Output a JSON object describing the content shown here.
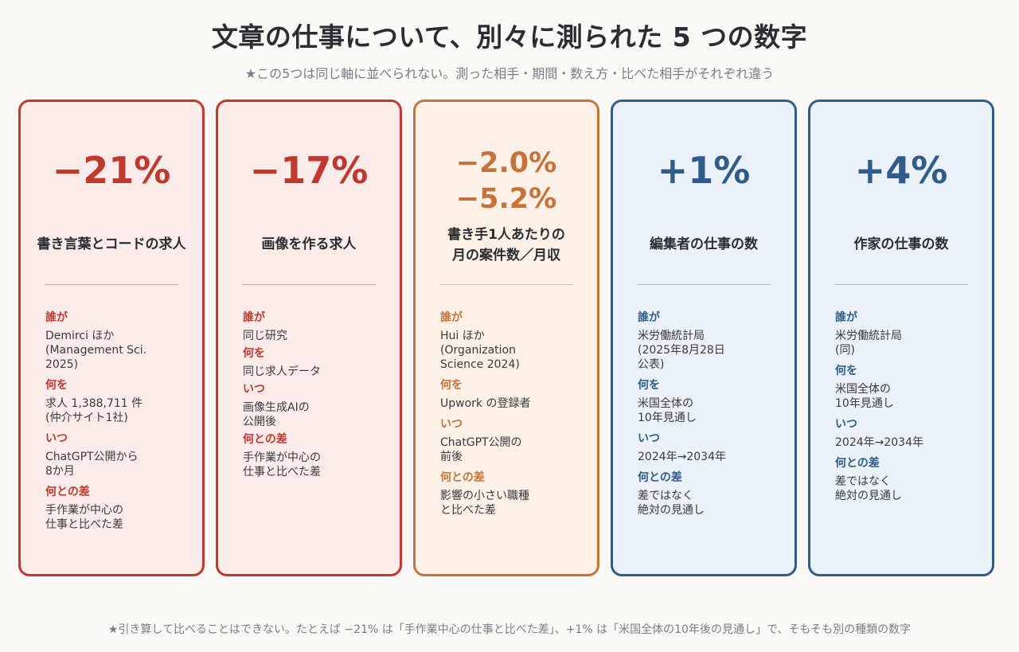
{
  "title": "文章の仕事について、別々に測られた 5 つの数字",
  "subtitle": "★この5つは同じ軸に並べられない。測った相手・期間・数え方・比べた相手がそれぞれ違う",
  "footer": "★引き算して比べることはできない。たとえば −21% は「手作業中心の仕事と比べた差」、+1% は「米国全体の10年後の見通し」で、そもそも別の種類の数字",
  "colors": {
    "red": "#c0392f",
    "orange": "#c67239",
    "blue": "#2f5c8a"
  },
  "cards": [
    {
      "big": "−21%",
      "label": "書き言葉とコードの求人",
      "sections": [
        {
          "head": "誰が",
          "body": "Demirci ほか\n(Management Sci.\n2025)"
        },
        {
          "head": "何を",
          "body": "求人 1,388,711 件\n(仲介サイト1社)"
        },
        {
          "head": "いつ",
          "body": "ChatGPT公開から\n8か月"
        },
        {
          "head": "何との差",
          "body": "手作業が中心の\n仕事と比べた差"
        }
      ]
    },
    {
      "big": "−17%",
      "label": "画像を作る求人",
      "sections": [
        {
          "head": "誰が",
          "body": "同じ研究"
        },
        {
          "head": "何を",
          "body": "同じ求人データ"
        },
        {
          "head": "いつ",
          "body": "画像生成AIの\n公開後"
        },
        {
          "head": "何との差",
          "body": "手作業が中心の\n仕事と比べた差"
        }
      ]
    },
    {
      "big1": "−2.0%",
      "big2": "−5.2%",
      "label1": "書き手1人あたりの",
      "label2": "月の案件数／月収",
      "sections": [
        {
          "head": "誰が",
          "body": "Hui ほか\n(Organization\nScience 2024)"
        },
        {
          "head": "何を",
          "body": "Upwork の登録者"
        },
        {
          "head": "いつ",
          "body": "ChatGPT公開の\n前後"
        },
        {
          "head": "何との差",
          "body": "影響の小さい職種\nと比べた差"
        }
      ]
    },
    {
      "big": "+1%",
      "label": "編集者の仕事の数",
      "sections": [
        {
          "head": "誰が",
          "body": "米労働統計局\n(2025年8月28日\n公表)"
        },
        {
          "head": "何を",
          "body": "米国全体の\n10年見通し"
        },
        {
          "head": "いつ",
          "body": "2024年→2034年"
        },
        {
          "head": "何との差",
          "body": "差ではなく\n絶対の見通し"
        }
      ]
    },
    {
      "big": "+4%",
      "label": "作家の仕事の数",
      "sections": [
        {
          "head": "誰が",
          "body": "米労働統計局\n(同)"
        },
        {
          "head": "何を",
          "body": "米国全体の\n10年見通し"
        },
        {
          "head": "いつ",
          "body": "2024年→2034年"
        },
        {
          "head": "何との差",
          "body": "差ではなく\n絶対の見通し"
        }
      ]
    }
  ]
}
